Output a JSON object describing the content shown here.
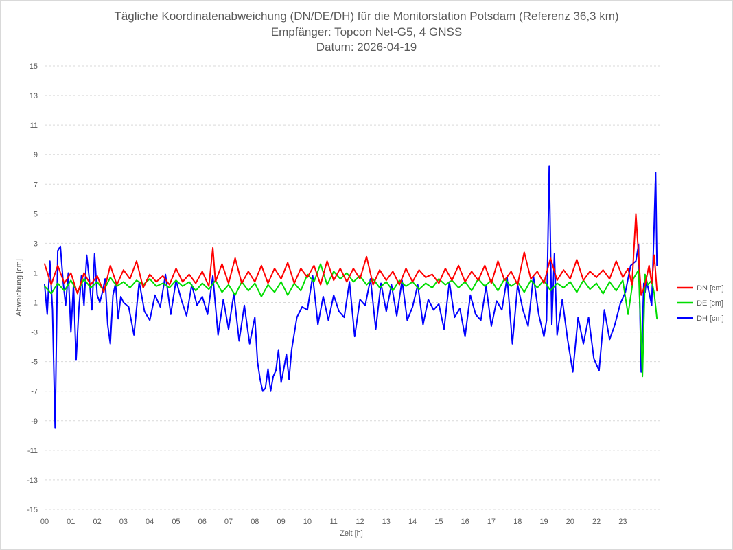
{
  "chart_data": {
    "type": "line",
    "title": [
      "Tägliche Koordinatenabweichung (DN/DE/DH) für die Monitorstation Potsdam (Referenz 36,3 km)",
      "Empfänger: Topcon Net-G5, 4 GNSS",
      "Datum: 2026-04-19"
    ],
    "xlabel": "Zeit [h]",
    "ylabel": "Abweichung [cm]",
    "xlim": [
      0,
      23.4
    ],
    "ylim": [
      -15,
      15
    ],
    "x_ticks": [
      "00",
      "01",
      "02",
      "03",
      "04",
      "05",
      "06",
      "07",
      "08",
      "09",
      "10",
      "11",
      "12",
      "13",
      "14",
      "15",
      "16",
      "17",
      "18",
      "19",
      "20",
      "22",
      "23"
    ],
    "y_ticks": [
      15,
      13,
      11,
      9,
      7,
      5,
      3,
      1,
      -1,
      -3,
      -5,
      -7,
      -9,
      -11,
      -13,
      -15
    ],
    "grid": "horizontal-dashed",
    "legend": "right",
    "series": [
      {
        "name": "DN [cm]",
        "color": "#ff0000",
        "x": [
          0.0,
          0.25,
          0.5,
          0.75,
          1.0,
          1.25,
          1.5,
          1.75,
          2.0,
          2.25,
          2.5,
          2.75,
          3.0,
          3.25,
          3.5,
          3.75,
          4.0,
          4.25,
          4.5,
          4.75,
          5.0,
          5.25,
          5.5,
          5.75,
          6.0,
          6.25,
          6.4,
          6.5,
          6.75,
          7.0,
          7.25,
          7.5,
          7.75,
          8.0,
          8.25,
          8.5,
          8.75,
          9.0,
          9.25,
          9.5,
          9.75,
          10.0,
          10.25,
          10.5,
          10.75,
          11.0,
          11.25,
          11.5,
          11.75,
          12.0,
          12.25,
          12.5,
          12.75,
          13.0,
          13.25,
          13.5,
          13.75,
          14.0,
          14.25,
          14.5,
          14.75,
          15.0,
          15.25,
          15.5,
          15.75,
          16.0,
          16.25,
          16.5,
          16.75,
          17.0,
          17.25,
          17.5,
          17.75,
          18.0,
          18.25,
          18.5,
          18.75,
          19.0,
          19.25,
          19.5,
          19.75,
          20.0,
          20.25,
          20.5,
          20.75,
          21.0,
          21.25,
          21.5,
          21.75,
          22.0,
          22.2,
          22.35,
          22.5,
          22.7,
          22.85,
          23.0,
          23.1,
          23.2,
          23.3
        ],
        "y": [
          1.6,
          0.2,
          1.5,
          0.3,
          1.0,
          -0.4,
          1.0,
          0.2,
          0.8,
          -0.3,
          1.5,
          0.2,
          1.2,
          0.6,
          1.8,
          0.0,
          0.9,
          0.4,
          0.8,
          0.2,
          1.3,
          0.4,
          0.9,
          0.3,
          1.1,
          0.1,
          2.7,
          0.4,
          1.6,
          0.3,
          2.0,
          0.3,
          1.1,
          0.4,
          1.5,
          0.3,
          1.3,
          0.6,
          1.7,
          0.3,
          1.3,
          0.7,
          1.5,
          0.2,
          1.8,
          0.5,
          1.3,
          0.4,
          1.3,
          0.6,
          2.1,
          0.2,
          1.2,
          0.5,
          1.1,
          0.2,
          1.3,
          0.4,
          1.2,
          0.7,
          0.9,
          0.3,
          1.3,
          0.5,
          1.5,
          0.4,
          1.1,
          0.5,
          1.5,
          0.3,
          1.8,
          0.5,
          1.1,
          0.2,
          2.4,
          0.6,
          1.1,
          0.3,
          2.0,
          0.5,
          1.2,
          0.6,
          1.9,
          0.5,
          1.1,
          0.7,
          1.2,
          0.6,
          1.8,
          0.7,
          1.3,
          0.2,
          5.0,
          -0.5,
          0.2,
          1.5,
          0.3,
          2.2,
          -0.2
        ]
      },
      {
        "name": "DE [cm]",
        "color": "#00dd00",
        "x": [
          0.0,
          0.25,
          0.5,
          0.75,
          1.0,
          1.25,
          1.5,
          1.75,
          2.0,
          2.25,
          2.5,
          2.75,
          3.0,
          3.25,
          3.5,
          3.75,
          4.0,
          4.25,
          4.5,
          4.75,
          5.0,
          5.25,
          5.5,
          5.75,
          6.0,
          6.25,
          6.5,
          6.75,
          7.0,
          7.25,
          7.5,
          7.75,
          8.0,
          8.25,
          8.5,
          8.75,
          9.0,
          9.25,
          9.5,
          9.75,
          10.0,
          10.25,
          10.5,
          10.75,
          11.0,
          11.25,
          11.5,
          11.75,
          12.0,
          12.25,
          12.5,
          12.75,
          13.0,
          13.25,
          13.5,
          13.75,
          14.0,
          14.25,
          14.5,
          14.75,
          15.0,
          15.25,
          15.5,
          15.75,
          16.0,
          16.25,
          16.5,
          16.75,
          17.0,
          17.25,
          17.5,
          17.75,
          18.0,
          18.25,
          18.5,
          18.75,
          19.0,
          19.25,
          19.5,
          19.75,
          20.0,
          20.25,
          20.5,
          20.75,
          21.0,
          21.25,
          21.5,
          21.75,
          22.0,
          22.2,
          22.4,
          22.6,
          22.75,
          22.85,
          22.95,
          23.1,
          23.2,
          23.3
        ],
        "y": [
          0.1,
          -0.4,
          0.3,
          -0.2,
          0.5,
          -0.3,
          0.6,
          0.0,
          0.4,
          -0.2,
          0.7,
          0.1,
          0.4,
          0.0,
          0.5,
          0.2,
          0.6,
          0.1,
          0.3,
          0.0,
          0.5,
          0.1,
          0.4,
          -0.2,
          0.3,
          -0.1,
          0.5,
          -0.3,
          0.2,
          -0.5,
          0.4,
          -0.2,
          0.3,
          -0.6,
          0.2,
          -0.3,
          0.4,
          -0.5,
          0.3,
          -0.2,
          0.9,
          0.4,
          1.6,
          0.2,
          1.1,
          0.6,
          1.0,
          0.4,
          0.8,
          0.2,
          0.6,
          0.0,
          0.4,
          -0.2,
          0.5,
          0.1,
          0.4,
          -0.1,
          0.3,
          0.0,
          0.6,
          0.2,
          0.5,
          0.0,
          0.4,
          -0.2,
          0.6,
          0.1,
          0.5,
          -0.2,
          0.6,
          0.1,
          0.4,
          -0.3,
          0.5,
          0.0,
          0.5,
          -0.2,
          0.3,
          0.0,
          0.4,
          -0.3,
          0.5,
          -0.1,
          0.3,
          -0.4,
          0.4,
          -0.2,
          0.5,
          -1.8,
          0.6,
          1.2,
          -6.0,
          0.9,
          0.2,
          0.5,
          -0.4,
          -2.1
        ]
      },
      {
        "name": "DH [cm]",
        "color": "#0000ff",
        "x": [
          0.0,
          0.1,
          0.2,
          0.3,
          0.4,
          0.5,
          0.6,
          0.7,
          0.8,
          0.9,
          1.0,
          1.1,
          1.2,
          1.3,
          1.4,
          1.5,
          1.6,
          1.7,
          1.8,
          1.9,
          2.0,
          2.1,
          2.2,
          2.3,
          2.4,
          2.5,
          2.6,
          2.7,
          2.8,
          2.9,
          3.0,
          3.2,
          3.4,
          3.6,
          3.8,
          4.0,
          4.2,
          4.4,
          4.6,
          4.8,
          5.0,
          5.2,
          5.4,
          5.6,
          5.8,
          6.0,
          6.2,
          6.4,
          6.6,
          6.8,
          7.0,
          7.2,
          7.4,
          7.6,
          7.8,
          8.0,
          8.1,
          8.2,
          8.3,
          8.4,
          8.5,
          8.6,
          8.7,
          8.8,
          8.9,
          9.0,
          9.1,
          9.2,
          9.3,
          9.4,
          9.6,
          9.8,
          10.0,
          10.2,
          10.4,
          10.6,
          10.8,
          11.0,
          11.2,
          11.4,
          11.6,
          11.8,
          12.0,
          12.2,
          12.4,
          12.6,
          12.8,
          13.0,
          13.2,
          13.4,
          13.6,
          13.8,
          14.0,
          14.2,
          14.4,
          14.6,
          14.8,
          15.0,
          15.2,
          15.4,
          15.6,
          15.8,
          16.0,
          16.2,
          16.4,
          16.6,
          16.8,
          17.0,
          17.2,
          17.4,
          17.6,
          17.8,
          18.0,
          18.2,
          18.4,
          18.6,
          18.8,
          19.0,
          19.1,
          19.2,
          19.3,
          19.4,
          19.5,
          19.7,
          19.9,
          20.1,
          20.3,
          20.5,
          20.7,
          20.9,
          21.1,
          21.3,
          21.5,
          21.7,
          21.9,
          22.1,
          22.3,
          22.5,
          22.6,
          22.7,
          22.8,
          22.85,
          22.9,
          23.0,
          23.1,
          23.2,
          23.25,
          23.3
        ],
        "y": [
          0.2,
          -1.8,
          1.8,
          -1.5,
          -9.5,
          2.5,
          2.8,
          0.5,
          -1.2,
          1.0,
          -3.0,
          0.2,
          -4.9,
          -1.5,
          0.8,
          -1.2,
          2.2,
          0.6,
          -1.5,
          2.3,
          -0.5,
          -1.0,
          -0.3,
          0.6,
          -2.5,
          -3.8,
          -0.5,
          0.3,
          -2.1,
          -0.6,
          -1.0,
          -1.3,
          -3.2,
          0.4,
          -1.6,
          -2.2,
          -0.5,
          -1.3,
          0.9,
          -1.8,
          0.5,
          -0.8,
          -1.9,
          0.2,
          -1.2,
          -0.6,
          -1.8,
          0.8,
          -3.2,
          -0.8,
          -2.8,
          -0.4,
          -3.6,
          -1.2,
          -3.8,
          -2.0,
          -5.0,
          -6.2,
          -7.0,
          -6.8,
          -5.5,
          -7.0,
          -6.0,
          -5.6,
          -4.2,
          -6.4,
          -5.5,
          -4.5,
          -6.2,
          -4.2,
          -2.0,
          -1.3,
          -1.5,
          0.8,
          -2.5,
          -0.6,
          -2.2,
          -0.5,
          -1.6,
          -2.0,
          0.4,
          -3.3,
          -0.8,
          -1.2,
          0.6,
          -2.8,
          0.3,
          -1.6,
          0.2,
          -1.9,
          0.5,
          -2.2,
          -1.3,
          0.2,
          -2.5,
          -0.8,
          -1.5,
          -1.1,
          -2.8,
          0.4,
          -2.0,
          -1.4,
          -3.3,
          -0.5,
          -1.8,
          -2.2,
          0.1,
          -2.6,
          -0.9,
          -1.5,
          0.7,
          -3.8,
          0.2,
          -1.5,
          -2.6,
          0.8,
          -1.8,
          -3.3,
          -2.2,
          8.2,
          -2.5,
          2.3,
          -3.2,
          -0.8,
          -3.5,
          -5.7,
          -2.0,
          -3.8,
          -2.0,
          -4.8,
          -5.6,
          -1.5,
          -3.5,
          -2.5,
          -1.1,
          -0.3,
          1.5,
          1.8,
          2.9,
          -5.7,
          0.3,
          -0.3,
          0.5,
          -0.3,
          -1.2,
          4.5,
          7.8,
          1.5
        ]
      }
    ]
  }
}
